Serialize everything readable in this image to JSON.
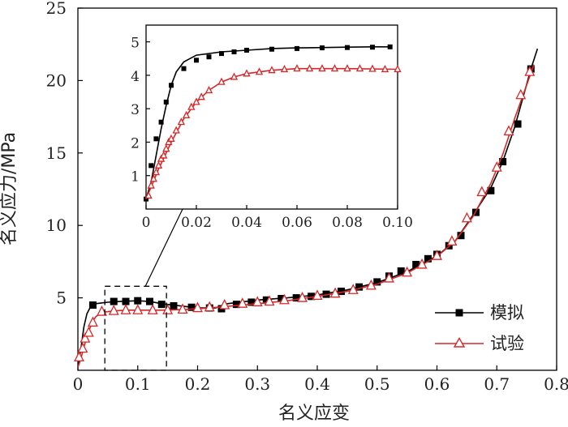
{
  "chart_data": [
    {
      "type": "line",
      "xlabel": "名义应变",
      "ylabel": "名义应力/MPa",
      "xlim": [
        0,
        0.8
      ],
      "ylim": [
        0,
        25
      ],
      "xticks": [
        "0",
        "0.1",
        "0.2",
        "0.3",
        "0.4",
        "0.5",
        "0.6",
        "0.7",
        "0.8"
      ],
      "yticks": [
        "5",
        "10",
        "15",
        "20",
        "25"
      ],
      "legend": {
        "position": "bottom-right"
      },
      "series": [
        {
          "name": "模拟",
          "color": "#000000",
          "marker": "square",
          "line": [
            [
              0,
              0.2
            ],
            [
              0.005,
              1.5
            ],
            [
              0.01,
              3.0
            ],
            [
              0.015,
              3.9
            ],
            [
              0.02,
              4.3
            ],
            [
              0.03,
              4.6
            ],
            [
              0.05,
              4.7
            ],
            [
              0.07,
              4.75
            ],
            [
              0.1,
              4.8
            ],
            [
              0.12,
              4.75
            ],
            [
              0.14,
              4.6
            ],
            [
              0.17,
              4.45
            ],
            [
              0.2,
              4.3
            ],
            [
              0.23,
              4.3
            ],
            [
              0.25,
              4.6
            ],
            [
              0.3,
              4.85
            ],
            [
              0.35,
              5.0
            ],
            [
              0.4,
              5.2
            ],
            [
              0.45,
              5.55
            ],
            [
              0.5,
              6.05
            ],
            [
              0.55,
              6.8
            ],
            [
              0.6,
              7.9
            ],
            [
              0.63,
              8.9
            ],
            [
              0.66,
              10.7
            ],
            [
              0.69,
              12.6
            ],
            [
              0.71,
              14.4
            ],
            [
              0.73,
              16.8
            ],
            [
              0.745,
              19.0
            ],
            [
              0.757,
              20.8
            ],
            [
              0.768,
              22.2
            ]
          ],
          "points": [
            [
              0.025,
              4.5
            ],
            [
              0.06,
              4.75
            ],
            [
              0.08,
              4.75
            ],
            [
              0.1,
              4.8
            ],
            [
              0.12,
              4.75
            ],
            [
              0.14,
              4.55
            ],
            [
              0.16,
              4.45
            ],
            [
              0.19,
              4.35
            ],
            [
              0.22,
              4.3
            ],
            [
              0.24,
              4.25
            ],
            [
              0.265,
              4.55
            ],
            [
              0.29,
              4.7
            ],
            [
              0.315,
              4.85
            ],
            [
              0.34,
              4.95
            ],
            [
              0.365,
              5.0
            ],
            [
              0.39,
              5.1
            ],
            [
              0.415,
              5.25
            ],
            [
              0.44,
              5.45
            ],
            [
              0.47,
              5.75
            ],
            [
              0.5,
              6.1
            ],
            [
              0.52,
              6.5
            ],
            [
              0.54,
              6.85
            ],
            [
              0.565,
              7.3
            ],
            [
              0.585,
              7.7
            ],
            [
              0.6,
              8.0
            ],
            [
              0.62,
              8.6
            ],
            [
              0.64,
              9.3
            ],
            [
              0.665,
              10.9
            ],
            [
              0.69,
              12.4
            ],
            [
              0.71,
              14.4
            ],
            [
              0.735,
              17.0
            ],
            [
              0.757,
              20.8
            ]
          ]
        },
        {
          "name": "试验",
          "color": "#d62728",
          "marker": "triangle-open",
          "line": [
            [
              0,
              0.2
            ],
            [
              0.005,
              0.8
            ],
            [
              0.01,
              1.6
            ],
            [
              0.015,
              2.3
            ],
            [
              0.02,
              2.9
            ],
            [
              0.025,
              3.4
            ],
            [
              0.03,
              3.7
            ],
            [
              0.04,
              4.0
            ],
            [
              0.06,
              4.1
            ],
            [
              0.08,
              4.15
            ],
            [
              0.1,
              4.15
            ],
            [
              0.14,
              4.15
            ],
            [
              0.18,
              4.2
            ],
            [
              0.22,
              4.3
            ],
            [
              0.26,
              4.45
            ],
            [
              0.3,
              4.6
            ],
            [
              0.35,
              4.8
            ],
            [
              0.4,
              5.1
            ],
            [
              0.45,
              5.45
            ],
            [
              0.5,
              5.95
            ],
            [
              0.55,
              6.7
            ],
            [
              0.6,
              7.85
            ],
            [
              0.63,
              8.9
            ],
            [
              0.66,
              10.6
            ],
            [
              0.69,
              12.9
            ],
            [
              0.71,
              14.9
            ],
            [
              0.73,
              17.4
            ],
            [
              0.75,
              19.7
            ],
            [
              0.762,
              21.1
            ]
          ],
          "points": [
            [
              0.002,
              0.9
            ],
            [
              0.008,
              1.5
            ],
            [
              0.012,
              2.2
            ],
            [
              0.018,
              2.6
            ],
            [
              0.025,
              3.3
            ],
            [
              0.04,
              4.05
            ],
            [
              0.06,
              4.1
            ],
            [
              0.08,
              4.15
            ],
            [
              0.1,
              4.15
            ],
            [
              0.125,
              4.15
            ],
            [
              0.15,
              4.15
            ],
            [
              0.175,
              4.2
            ],
            [
              0.2,
              4.3
            ],
            [
              0.22,
              4.35
            ],
            [
              0.245,
              4.5
            ],
            [
              0.275,
              4.6
            ],
            [
              0.3,
              4.7
            ],
            [
              0.32,
              4.75
            ],
            [
              0.345,
              4.85
            ],
            [
              0.375,
              5.0
            ],
            [
              0.4,
              5.15
            ],
            [
              0.43,
              5.3
            ],
            [
              0.46,
              5.55
            ],
            [
              0.49,
              5.85
            ],
            [
              0.52,
              6.35
            ],
            [
              0.55,
              6.75
            ],
            [
              0.575,
              7.3
            ],
            [
              0.6,
              7.9
            ],
            [
              0.625,
              8.9
            ],
            [
              0.65,
              10.5
            ],
            [
              0.675,
              12.3
            ],
            [
              0.7,
              14.0
            ],
            [
              0.72,
              16.5
            ],
            [
              0.74,
              19.0
            ],
            [
              0.755,
              20.6
            ]
          ]
        }
      ],
      "zoom_box": {
        "x": [
          0.045,
          0.148
        ],
        "y": [
          0,
          5.8
        ]
      }
    },
    {
      "type": "line",
      "xlim": [
        0,
        0.1
      ],
      "ylim": [
        0,
        5.5
      ],
      "xticks": [
        "0",
        "0.02",
        "0.04",
        "0.06",
        "0.08",
        "0.10"
      ],
      "yticks": [
        "1",
        "2",
        "3",
        "4",
        "5"
      ],
      "series": [
        {
          "name": "模拟",
          "color": "#000000",
          "marker": "square",
          "line": [
            [
              0,
              0.3
            ],
            [
              0.002,
              0.8
            ],
            [
              0.004,
              1.6
            ],
            [
              0.006,
              2.4
            ],
            [
              0.008,
              3.1
            ],
            [
              0.01,
              3.7
            ],
            [
              0.012,
              4.1
            ],
            [
              0.015,
              4.4
            ],
            [
              0.02,
              4.6
            ],
            [
              0.03,
              4.7
            ],
            [
              0.04,
              4.75
            ],
            [
              0.05,
              4.8
            ],
            [
              0.06,
              4.82
            ],
            [
              0.07,
              4.83
            ],
            [
              0.08,
              4.84
            ],
            [
              0.09,
              4.85
            ],
            [
              0.097,
              4.85
            ]
          ],
          "points": [
            [
              0.0,
              0.3
            ],
            [
              0.002,
              1.3
            ],
            [
              0.004,
              2.1
            ],
            [
              0.006,
              2.6
            ],
            [
              0.008,
              3.2
            ],
            [
              0.01,
              3.7
            ],
            [
              0.015,
              4.2
            ],
            [
              0.02,
              4.45
            ],
            [
              0.025,
              4.55
            ],
            [
              0.03,
              4.65
            ],
            [
              0.035,
              4.7
            ],
            [
              0.04,
              4.75
            ],
            [
              0.05,
              4.78
            ],
            [
              0.06,
              4.8
            ],
            [
              0.07,
              4.82
            ],
            [
              0.08,
              4.83
            ],
            [
              0.09,
              4.84
            ],
            [
              0.097,
              4.85
            ]
          ]
        },
        {
          "name": "试验",
          "color": "#d62728",
          "marker": "triangle-open",
          "line": [
            [
              0,
              0.3
            ],
            [
              0.005,
              1.2
            ],
            [
              0.01,
              2.0
            ],
            [
              0.015,
              2.7
            ],
            [
              0.02,
              3.2
            ],
            [
              0.025,
              3.55
            ],
            [
              0.03,
              3.8
            ],
            [
              0.035,
              3.95
            ],
            [
              0.04,
              4.05
            ],
            [
              0.05,
              4.15
            ],
            [
              0.06,
              4.2
            ],
            [
              0.08,
              4.2
            ],
            [
              0.1,
              4.18
            ]
          ],
          "points": [
            [
              0.001,
              0.4
            ],
            [
              0.002,
              0.7
            ],
            [
              0.003,
              0.9
            ],
            [
              0.004,
              1.1
            ],
            [
              0.005,
              1.3
            ],
            [
              0.006,
              1.5
            ],
            [
              0.007,
              1.6
            ],
            [
              0.008,
              1.8
            ],
            [
              0.009,
              2.0
            ],
            [
              0.01,
              2.1
            ],
            [
              0.012,
              2.35
            ],
            [
              0.014,
              2.6
            ],
            [
              0.016,
              2.8
            ],
            [
              0.018,
              3.05
            ],
            [
              0.02,
              3.2
            ],
            [
              0.022,
              3.35
            ],
            [
              0.025,
              3.55
            ],
            [
              0.03,
              3.8
            ],
            [
              0.035,
              3.95
            ],
            [
              0.04,
              4.05
            ],
            [
              0.045,
              4.1
            ],
            [
              0.05,
              4.15
            ],
            [
              0.055,
              4.18
            ],
            [
              0.06,
              4.2
            ],
            [
              0.065,
              4.2
            ],
            [
              0.07,
              4.2
            ],
            [
              0.075,
              4.2
            ],
            [
              0.08,
              4.2
            ],
            [
              0.085,
              4.2
            ],
            [
              0.09,
              4.19
            ],
            [
              0.095,
              4.18
            ],
            [
              0.1,
              4.18
            ]
          ]
        }
      ]
    }
  ]
}
